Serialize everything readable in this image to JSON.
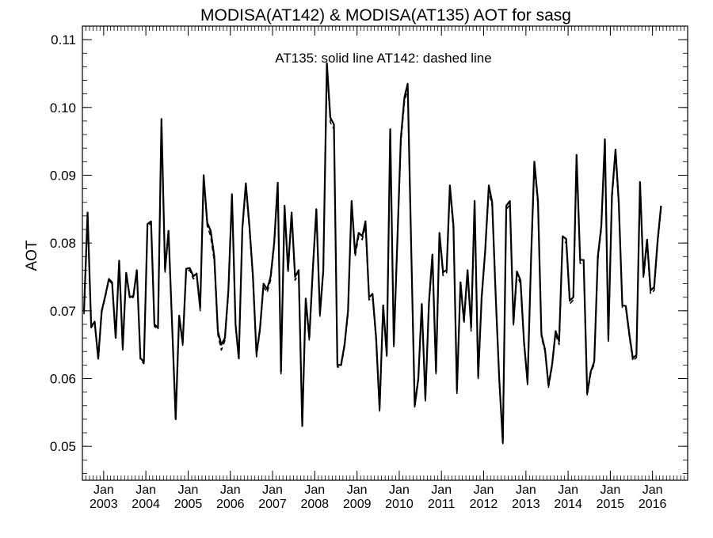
{
  "chart_data": {
    "type": "line",
    "title": "MODISA(AT142) & MODISA(AT135)  AOT for sasg",
    "annotation": "AT135: solid line   AT142: dashed line",
    "ylabel": "AOT",
    "xlabel": "",
    "ylim": [
      0.045,
      0.112
    ],
    "xlim": [
      "2002-07-01",
      "2016-10-31"
    ],
    "y_ticks": [
      "0.05",
      "0.06",
      "0.07",
      "0.08",
      "0.09",
      "0.10",
      "0.11"
    ],
    "x_ticks": [
      {
        "top": "Jan",
        "bottom": "2003"
      },
      {
        "top": "Jan",
        "bottom": "2004"
      },
      {
        "top": "Jan",
        "bottom": "2005"
      },
      {
        "top": "Jan",
        "bottom": "2006"
      },
      {
        "top": "Jan",
        "bottom": "2007"
      },
      {
        "top": "Jan",
        "bottom": "2008"
      },
      {
        "top": "Jan",
        "bottom": "2009"
      },
      {
        "top": "Jan",
        "bottom": "2010"
      },
      {
        "top": "Jan",
        "bottom": "2011"
      },
      {
        "top": "Jan",
        "bottom": "2012"
      },
      {
        "top": "Jan",
        "bottom": "2013"
      },
      {
        "top": "Jan",
        "bottom": "2014"
      },
      {
        "top": "Jan",
        "bottom": "2015"
      },
      {
        "top": "Jan",
        "bottom": "2016"
      }
    ],
    "grid": false,
    "start_date": "2002-07",
    "series": [
      {
        "name": "AT135",
        "style": "solid",
        "values": [
          0.07,
          0.0845,
          0.0677,
          0.0684,
          0.063,
          0.07,
          0.0722,
          0.0747,
          0.0742,
          0.066,
          0.0774,
          0.0645,
          0.0756,
          0.072,
          0.0722,
          0.076,
          0.063,
          0.0625,
          0.0828,
          0.0832,
          0.068,
          0.0675,
          0.0983,
          0.076,
          0.0818,
          0.068,
          0.054,
          0.0693,
          0.0652,
          0.0762,
          0.0763,
          0.0751,
          0.0755,
          0.0704,
          0.09,
          0.083,
          0.0818,
          0.078,
          0.067,
          0.065,
          0.066,
          0.073,
          0.0872,
          0.068,
          0.063,
          0.0822,
          0.0888,
          0.0825,
          0.0752,
          0.0636,
          0.0675,
          0.074,
          0.0732,
          0.075,
          0.08,
          0.0889,
          0.061,
          0.0855,
          0.076,
          0.0845,
          0.075,
          0.076,
          0.053,
          0.0718,
          0.066,
          0.076,
          0.085,
          0.0695,
          0.076,
          0.1065,
          0.0985,
          0.0975,
          0.062,
          0.062,
          0.065,
          0.07,
          0.0862,
          0.0785,
          0.0815,
          0.081,
          0.0832,
          0.072,
          0.0725,
          0.066,
          0.0555,
          0.0708,
          0.0635,
          0.0968,
          0.065,
          0.08,
          0.0955,
          0.1015,
          0.1035,
          0.079,
          0.056,
          0.06,
          0.071,
          0.057,
          0.0712,
          0.0783,
          0.061,
          0.0815,
          0.0757,
          0.076,
          0.0885,
          0.0826,
          0.0582,
          0.0742,
          0.0685,
          0.076,
          0.0675,
          0.0862,
          0.0603,
          0.072,
          0.079,
          0.0885,
          0.086,
          0.072,
          0.06,
          0.0506,
          0.0855,
          0.0862,
          0.0682,
          0.0758,
          0.0745,
          0.0655,
          0.0594,
          0.078,
          0.092,
          0.0862,
          0.0665,
          0.0643,
          0.059,
          0.062,
          0.067,
          0.0655,
          0.081,
          0.0806,
          0.0715,
          0.072,
          0.093,
          0.0775,
          0.0775,
          0.0578,
          0.061,
          0.0625,
          0.078,
          0.0825,
          0.0953,
          0.0658,
          0.087,
          0.0938,
          0.086,
          0.0708,
          0.0707,
          0.0665,
          0.063,
          0.0635,
          0.089,
          0.0752,
          0.0805,
          0.073,
          0.0735,
          0.0805,
          0.0855
        ]
      },
      {
        "name": "AT142",
        "style": "dashed",
        "values": [
          0.0695,
          0.0838,
          0.0675,
          0.0682,
          0.0626,
          0.0697,
          0.072,
          0.0745,
          0.074,
          0.0658,
          0.077,
          0.0642,
          0.0752,
          0.0718,
          0.072,
          0.0758,
          0.0627,
          0.0622,
          0.0825,
          0.0829,
          0.0677,
          0.0672,
          0.0978,
          0.0757,
          0.0815,
          0.0677,
          0.0538,
          0.069,
          0.0649,
          0.0758,
          0.076,
          0.0747,
          0.0752,
          0.07,
          0.0896,
          0.0825,
          0.081,
          0.0773,
          0.0665,
          0.0642,
          0.0656,
          0.0726,
          0.0866,
          0.0676,
          0.0628,
          0.0818,
          0.0882,
          0.082,
          0.0748,
          0.0632,
          0.0671,
          0.0735,
          0.0727,
          0.0745,
          0.0796,
          0.0883,
          0.0607,
          0.085,
          0.0756,
          0.084,
          0.0745,
          0.0755,
          0.0528,
          0.0714,
          0.0656,
          0.0756,
          0.0846,
          0.0692,
          0.0756,
          0.1058,
          0.0978,
          0.0968,
          0.0617,
          0.0617,
          0.0647,
          0.0696,
          0.0856,
          0.078,
          0.081,
          0.0805,
          0.0826,
          0.0716,
          0.072,
          0.0656,
          0.0552,
          0.0704,
          0.0632,
          0.096,
          0.0647,
          0.0795,
          0.0948,
          0.1008,
          0.1028,
          0.0785,
          0.0557,
          0.0597,
          0.0706,
          0.0567,
          0.0708,
          0.0778,
          0.0607,
          0.081,
          0.0752,
          0.0756,
          0.0878,
          0.082,
          0.0578,
          0.0738,
          0.0681,
          0.0755,
          0.067,
          0.0856,
          0.06,
          0.0716,
          0.0785,
          0.0878,
          0.0854,
          0.0716,
          0.0597,
          0.0504,
          0.085,
          0.0856,
          0.0678,
          0.0753,
          0.074,
          0.0652,
          0.0591,
          0.0775,
          0.0913,
          0.0856,
          0.0661,
          0.064,
          0.0587,
          0.0617,
          0.0666,
          0.065,
          0.0805,
          0.08,
          0.071,
          0.0716,
          0.0923,
          0.077,
          0.077,
          0.0575,
          0.0607,
          0.0622,
          0.0775,
          0.082,
          0.0946,
          0.0655,
          0.0864,
          0.0931,
          0.0854,
          0.0704,
          0.0703,
          0.0661,
          0.0626,
          0.0631,
          0.0884,
          0.0748,
          0.08,
          0.0725,
          0.073,
          0.08,
          0.085
        ]
      }
    ]
  }
}
